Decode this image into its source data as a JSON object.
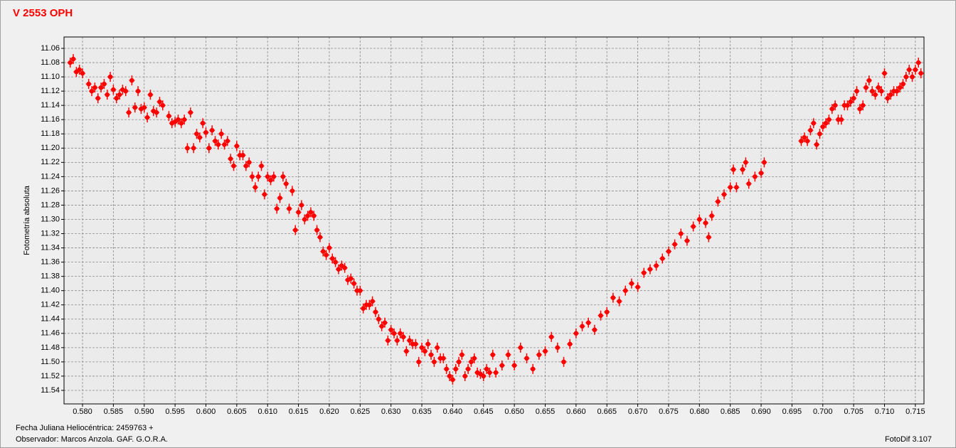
{
  "chart_data": {
    "type": "scatter",
    "title": "V 2553 OPH",
    "y_label": "Fotometría absoluta",
    "footer_left": [
      "Fecha Juliana Heliocéntrica: 2459763 +",
      "Observador:  Marcos Anzola. GAF. G.O.R.A."
    ],
    "footer_right": "FotoDif 3.107",
    "color": "#ff0000",
    "grid": true,
    "xlim": [
      0.577,
      0.7164
    ],
    "ylim": [
      11.559,
      11.044
    ],
    "xticks": [
      {
        "value": 0.58,
        "label": "0.580"
      },
      0.585,
      {
        "value": 0.59,
        "label": "0.590"
      },
      0.595,
      {
        "value": 0.6,
        "label": "0.600"
      },
      0.605,
      {
        "value": 0.61,
        "label": "0.610"
      },
      0.615,
      {
        "value": 0.62,
        "label": "0.620"
      },
      0.625,
      {
        "value": 0.63,
        "label": "0.630"
      },
      0.635,
      {
        "value": 0.64,
        "label": "0.640"
      },
      0.645,
      {
        "value": 0.65,
        "label": "0.650"
      },
      0.655,
      {
        "value": 0.66,
        "label": "0.660"
      },
      0.665,
      {
        "value": 0.67,
        "label": "0.670"
      },
      0.675,
      {
        "value": 0.68,
        "label": "0.680"
      },
      0.685,
      {
        "value": 0.69,
        "label": "0.690"
      },
      0.695,
      {
        "value": 0.7,
        "label": "0.700"
      },
      0.705,
      {
        "value": 0.71,
        "label": "0.710"
      },
      0.715
    ],
    "yticks": [
      11.06,
      11.08,
      {
        "value": 11.1,
        "label": "11.10"
      },
      11.12,
      11.14,
      11.16,
      11.18,
      {
        "value": 11.2,
        "label": "11.20"
      },
      11.22,
      11.24,
      11.26,
      11.28,
      {
        "value": 11.3,
        "label": "11.30"
      },
      11.32,
      11.34,
      11.36,
      11.38,
      {
        "value": 11.4,
        "label": "11.40"
      },
      11.42,
      11.44,
      11.46,
      11.48,
      {
        "value": 11.5,
        "label": "11.50"
      },
      11.52,
      11.54
    ],
    "x": [
      0.578,
      0.5785,
      0.579,
      0.5795,
      0.58,
      0.581,
      0.5815,
      0.582,
      0.5825,
      0.583,
      0.5835,
      0.584,
      0.5845,
      0.585,
      0.5855,
      0.586,
      0.5865,
      0.587,
      0.5875,
      0.588,
      0.5885,
      0.589,
      0.5895,
      0.59,
      0.5905,
      0.591,
      0.5915,
      0.592,
      0.5925,
      0.593,
      0.594,
      0.5945,
      0.595,
      0.5955,
      0.596,
      0.5965,
      0.597,
      0.5975,
      0.598,
      0.5985,
      0.599,
      0.5995,
      0.6,
      0.6005,
      0.601,
      0.6015,
      0.602,
      0.6025,
      0.603,
      0.6035,
      0.604,
      0.6045,
      0.605,
      0.6055,
      0.606,
      0.6065,
      0.607,
      0.6075,
      0.608,
      0.6085,
      0.609,
      0.6095,
      0.61,
      0.6105,
      0.611,
      0.6115,
      0.612,
      0.6125,
      0.613,
      0.6135,
      0.614,
      0.6145,
      0.615,
      0.6155,
      0.616,
      0.6165,
      0.617,
      0.6175,
      0.618,
      0.6185,
      0.619,
      0.6195,
      0.62,
      0.6205,
      0.621,
      0.6215,
      0.622,
      0.6225,
      0.623,
      0.6235,
      0.624,
      0.6245,
      0.625,
      0.6255,
      0.626,
      0.6265,
      0.627,
      0.6275,
      0.628,
      0.6285,
      0.629,
      0.6295,
      0.63,
      0.6305,
      0.631,
      0.6315,
      0.632,
      0.6325,
      0.633,
      0.6335,
      0.634,
      0.6345,
      0.635,
      0.6355,
      0.636,
      0.6365,
      0.637,
      0.6375,
      0.638,
      0.6385,
      0.639,
      0.6395,
      0.64,
      0.6405,
      0.641,
      0.6415,
      0.642,
      0.6425,
      0.643,
      0.6435,
      0.644,
      0.6445,
      0.645,
      0.6455,
      0.646,
      0.6465,
      0.647,
      0.648,
      0.649,
      0.65,
      0.651,
      0.652,
      0.653,
      0.654,
      0.655,
      0.656,
      0.657,
      0.658,
      0.659,
      0.66,
      0.661,
      0.662,
      0.663,
      0.664,
      0.665,
      0.666,
      0.667,
      0.668,
      0.669,
      0.67,
      0.671,
      0.672,
      0.673,
      0.674,
      0.675,
      0.676,
      0.677,
      0.678,
      0.679,
      0.68,
      0.681,
      0.6815,
      0.682,
      0.683,
      0.684,
      0.685,
      0.6855,
      0.686,
      0.687,
      0.6875,
      0.688,
      0.689,
      0.69,
      0.6905,
      0.6965,
      0.697,
      0.6975,
      0.698,
      0.6985,
      0.699,
      0.6995,
      0.7,
      0.7005,
      0.701,
      0.7015,
      0.702,
      0.7025,
      0.703,
      0.7035,
      0.704,
      0.7045,
      0.705,
      0.7055,
      0.706,
      0.7065,
      0.707,
      0.7075,
      0.708,
      0.7085,
      0.709,
      0.7095,
      0.71,
      0.7105,
      0.711,
      0.7115,
      0.712,
      0.7125,
      0.713,
      0.7135,
      0.714,
      0.7145,
      0.715,
      0.7155,
      0.7159
    ],
    "values": [
      11.08,
      11.075,
      11.093,
      11.09,
      11.095,
      11.11,
      11.12,
      11.115,
      11.13,
      11.115,
      11.11,
      11.125,
      11.1,
      11.118,
      11.13,
      11.125,
      11.118,
      11.12,
      11.15,
      11.105,
      11.143,
      11.12,
      11.145,
      11.143,
      11.157,
      11.125,
      11.148,
      11.15,
      11.135,
      11.14,
      11.155,
      11.165,
      11.163,
      11.16,
      11.165,
      11.16,
      11.2,
      11.15,
      11.2,
      11.18,
      11.185,
      11.165,
      11.178,
      11.2,
      11.175,
      11.19,
      11.195,
      11.18,
      11.195,
      11.19,
      11.215,
      11.225,
      11.197,
      11.21,
      11.21,
      11.225,
      11.22,
      11.24,
      11.255,
      11.24,
      11.225,
      11.265,
      11.24,
      11.245,
      11.24,
      11.285,
      11.27,
      11.24,
      11.25,
      11.285,
      11.26,
      11.315,
      11.29,
      11.28,
      11.3,
      11.295,
      11.29,
      11.295,
      11.315,
      11.325,
      11.345,
      11.35,
      11.34,
      11.355,
      11.36,
      11.37,
      11.365,
      11.368,
      11.385,
      11.383,
      11.39,
      11.4,
      11.4,
      11.425,
      11.42,
      11.42,
      11.415,
      11.43,
      11.44,
      11.45,
      11.445,
      11.47,
      11.455,
      11.46,
      11.47,
      11.46,
      11.465,
      11.485,
      11.47,
      11.475,
      11.475,
      11.5,
      11.48,
      11.485,
      11.475,
      11.49,
      11.5,
      11.48,
      11.495,
      11.495,
      11.51,
      11.52,
      11.525,
      11.51,
      11.5,
      11.49,
      11.52,
      11.51,
      11.5,
      11.495,
      11.515,
      11.517,
      11.52,
      11.51,
      11.515,
      11.49,
      11.515,
      11.505,
      11.49,
      11.505,
      11.48,
      11.495,
      11.51,
      11.49,
      11.485,
      11.465,
      11.48,
      11.5,
      11.475,
      11.46,
      11.45,
      11.445,
      11.455,
      11.435,
      11.43,
      11.41,
      11.415,
      11.4,
      11.39,
      11.395,
      11.375,
      11.37,
      11.365,
      11.355,
      11.345,
      11.335,
      11.32,
      11.33,
      11.31,
      11.3,
      11.305,
      11.325,
      11.295,
      11.275,
      11.265,
      11.255,
      11.23,
      11.255,
      11.23,
      11.22,
      11.25,
      11.24,
      11.235,
      11.22,
      11.19,
      11.185,
      11.19,
      11.175,
      11.165,
      11.195,
      11.18,
      11.17,
      11.165,
      11.16,
      11.145,
      11.14,
      11.16,
      11.16,
      11.14,
      11.14,
      11.135,
      11.13,
      11.12,
      11.145,
      11.14,
      11.115,
      11.105,
      11.12,
      11.125,
      11.115,
      11.12,
      11.095,
      11.13,
      11.125,
      11.12,
      11.12,
      11.115,
      11.11,
      11.1,
      11.09,
      11.1,
      11.09,
      11.08,
      11.095
    ]
  }
}
